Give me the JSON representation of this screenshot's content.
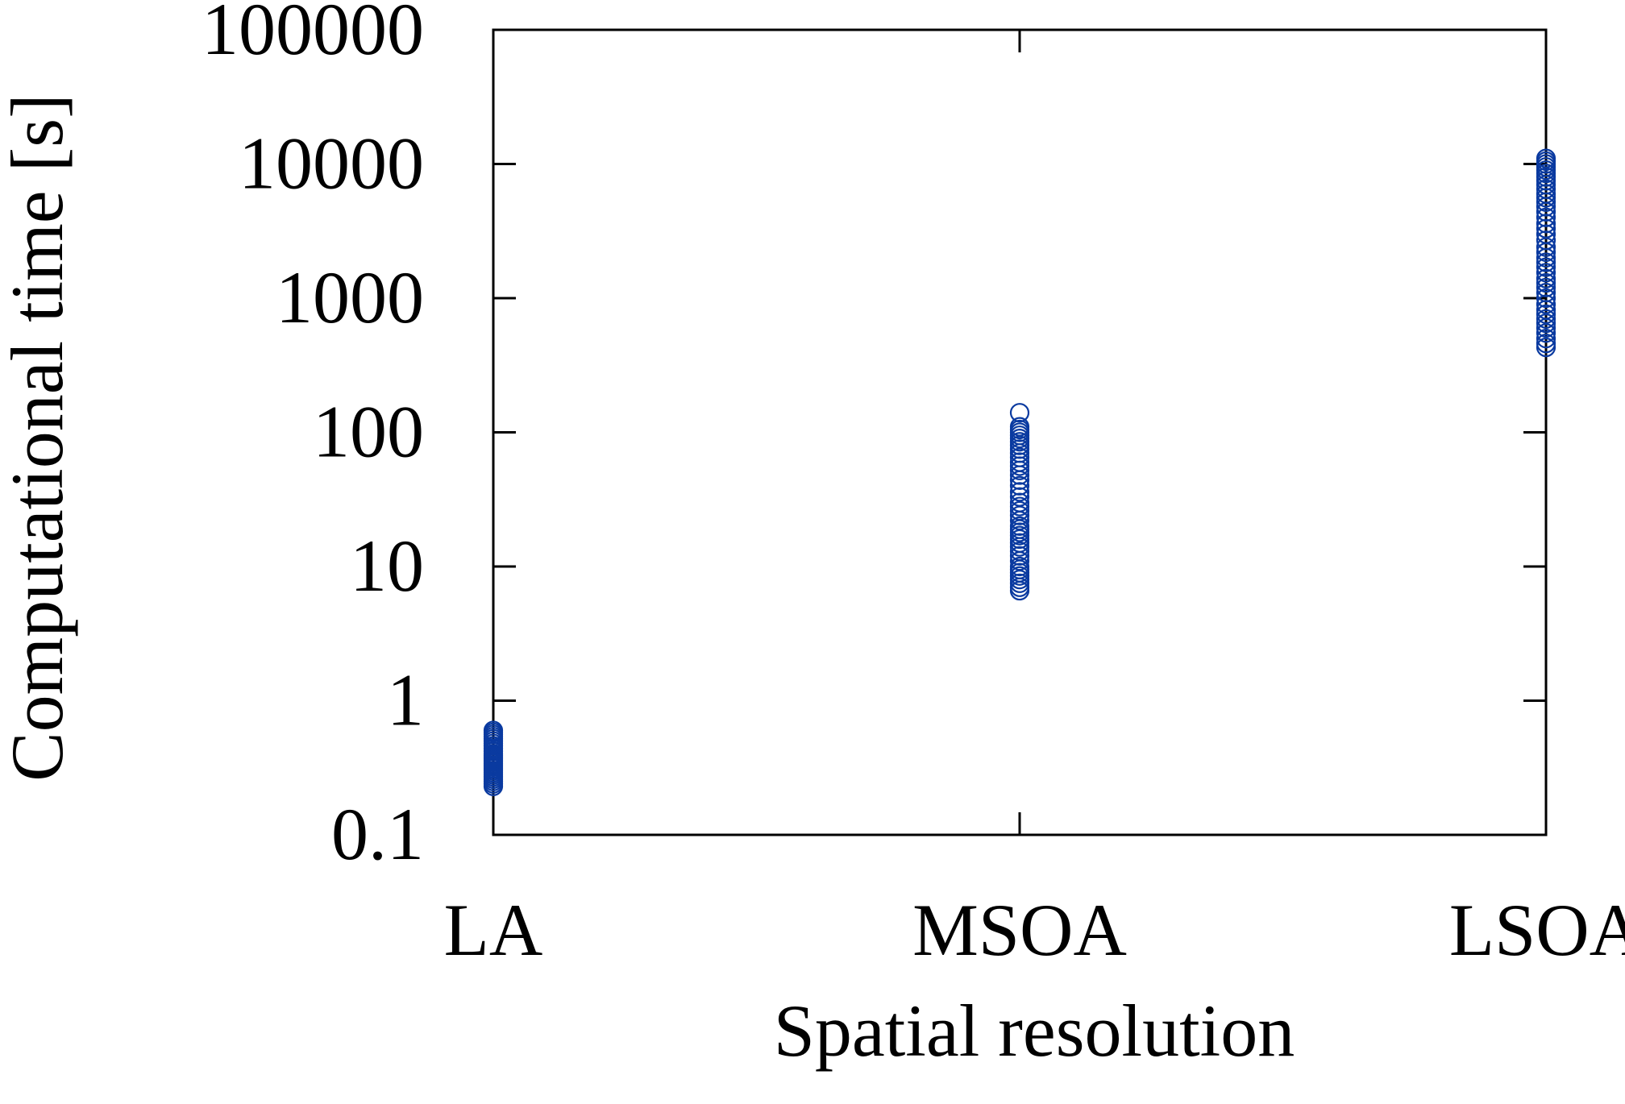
{
  "chart_data": {
    "type": "scatter",
    "title": "",
    "xlabel": "Spatial resolution",
    "ylabel": "Computational time [s]",
    "categories": [
      "LA",
      "MSOA",
      "LSOA"
    ],
    "yscale": "log",
    "ylim": [
      0.1,
      100000
    ],
    "yticks": [
      0.1,
      1,
      10,
      100,
      1000,
      10000,
      100000
    ],
    "ytick_labels": [
      "0.1",
      "1",
      "10",
      "100",
      "1000",
      "10000",
      "100000"
    ],
    "grid": false,
    "legend": "none",
    "marker": "open-circle",
    "color": "#0a3aa0",
    "series": [
      {
        "category": "LA",
        "values": [
          0.23,
          0.24,
          0.25,
          0.26,
          0.27,
          0.28,
          0.29,
          0.3,
          0.31,
          0.32,
          0.33,
          0.34,
          0.35,
          0.36,
          0.37,
          0.38,
          0.39,
          0.4,
          0.42,
          0.44,
          0.46,
          0.48,
          0.5,
          0.52,
          0.54,
          0.56,
          0.58,
          0.6
        ]
      },
      {
        "category": "MSOA",
        "values": [
          6.6,
          7,
          7.5,
          8,
          8.5,
          9,
          9.5,
          10,
          11,
          12,
          13,
          14,
          15,
          16,
          17,
          18,
          19,
          20,
          22,
          24,
          26,
          28,
          30,
          33,
          36,
          40,
          44,
          48,
          52,
          56,
          60,
          65,
          70,
          75,
          80,
          85,
          90,
          95,
          100,
          105,
          110,
          140
        ]
      },
      {
        "category": "LSOA",
        "values": [
          430,
          460,
          500,
          550,
          600,
          650,
          700,
          760,
          820,
          900,
          1000,
          1100,
          1200,
          1300,
          1400,
          1550,
          1700,
          1850,
          2000,
          2200,
          2400,
          2700,
          3000,
          3300,
          3600,
          4000,
          4400,
          4800,
          5200,
          5600,
          6000,
          6500,
          7000,
          7500,
          8000,
          8500,
          9000,
          9500,
          10000,
          10500,
          11000
        ]
      }
    ]
  }
}
